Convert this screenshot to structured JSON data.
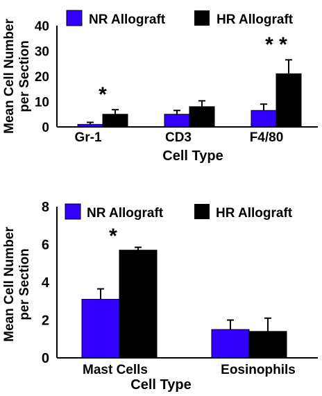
{
  "colors": {
    "nr": "#3300ff",
    "hr": "#000000"
  },
  "chart_data": [
    {
      "type": "bar",
      "series": [
        {
          "name": "NR Allograft",
          "values": [
            1,
            5,
            6.5
          ],
          "errors": [
            0.8,
            1.5,
            2.5
          ]
        },
        {
          "name": "HR Allograft",
          "values": [
            5,
            8,
            21
          ],
          "errors": [
            1.8,
            2.3,
            5.5
          ]
        }
      ],
      "categories": [
        "Gr-1",
        "CD3",
        "F4/80"
      ],
      "ylim": [
        0,
        40
      ],
      "yticks": [
        "0",
        "10",
        "20",
        "30",
        "40"
      ],
      "ylabel_line1": "Mean Cell Number",
      "ylabel_line2": "per Section",
      "xlabel": "Cell Type",
      "significance": [
        "*",
        "",
        "* *"
      ]
    },
    {
      "type": "bar",
      "series": [
        {
          "name": "NR Allograft",
          "values": [
            3.1,
            1.5
          ],
          "errors": [
            0.55,
            0.5
          ]
        },
        {
          "name": "HR Allograft",
          "values": [
            5.7,
            1.4
          ],
          "errors": [
            0.15,
            0.7
          ]
        }
      ],
      "categories": [
        "Mast Cells",
        "Eosinophils"
      ],
      "ylim": [
        0,
        8
      ],
      "yticks": [
        "0",
        "2",
        "4",
        "6",
        "8"
      ],
      "ylabel_line1": "Mean Cell Number",
      "ylabel_line2": "per Section",
      "xlabel": "Cell Type",
      "significance": [
        "*",
        ""
      ]
    }
  ]
}
